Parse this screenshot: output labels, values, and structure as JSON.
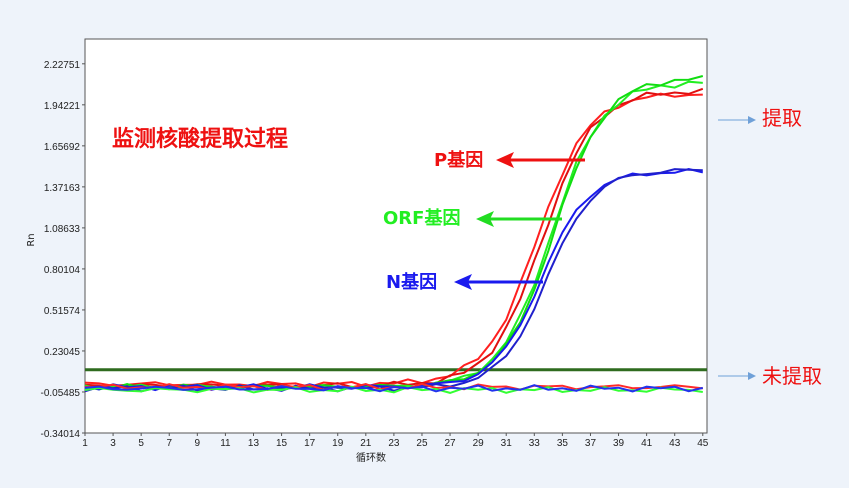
{
  "chart_data": {
    "type": "line",
    "title": "监测核酸提取过程",
    "xlabel": "循环数",
    "ylabel": "Rn",
    "xlim": [
      1,
      45
    ],
    "ylim": [
      -0.34014,
      2.4
    ],
    "x_ticks": [
      "1",
      "3",
      "5",
      "7",
      "9",
      "11",
      "13",
      "15",
      "17",
      "19",
      "21",
      "23",
      "25",
      "27",
      "29",
      "31",
      "33",
      "35",
      "37",
      "39",
      "41",
      "43",
      "45"
    ],
    "y_ticks": [
      "-0.34014",
      "-0.05485",
      "0.23045",
      "0.51574",
      "0.80104",
      "1.08633",
      "1.37163",
      "1.65692",
      "1.94221",
      "2.22751"
    ],
    "threshold": 0.1,
    "threshold_color": "#2f6b1f",
    "series": [
      {
        "color": "#ff1f1f",
        "curve": {
          "base": 0.0,
          "plateau": 2.02,
          "mid": 33.2,
          "k": 0.55
        }
      },
      {
        "color": "#e01010",
        "curve": {
          "base": -0.01,
          "plateau": 2.05,
          "mid": 33.6,
          "k": 0.55
        }
      },
      {
        "color": "#22ee22",
        "curve": {
          "base": -0.02,
          "plateau": 2.12,
          "mid": 34.2,
          "k": 0.55
        }
      },
      {
        "color": "#11dd11",
        "curve": {
          "base": -0.02,
          "plateau": 2.15,
          "mid": 34.4,
          "k": 0.55
        }
      },
      {
        "color": "#1a1aee",
        "curve": {
          "base": -0.02,
          "plateau": 1.5,
          "mid": 33.5,
          "k": 0.6
        }
      },
      {
        "color": "#2020cc",
        "curve": {
          "base": -0.03,
          "plateau": 1.52,
          "mid": 33.9,
          "k": 0.6
        }
      },
      {
        "color": "#ff2a2a",
        "curve": {
          "base": -0.02,
          "plateau": 0.0,
          "mid": 40,
          "k": 0.3
        }
      },
      {
        "color": "#33ff33",
        "curve": {
          "base": -0.04,
          "plateau": 0.0,
          "mid": 40,
          "k": 0.3
        }
      },
      {
        "color": "#2233ee",
        "curve": {
          "base": -0.03,
          "plateau": 0.0,
          "mid": 40,
          "k": 0.3
        }
      }
    ],
    "annotations": [
      {
        "text": "P基因",
        "color": "#ee1111",
        "arrow_color": "#ee1111"
      },
      {
        "text": "ORF基因",
        "color": "#22ee22",
        "arrow_color": "#22dd22"
      },
      {
        "text": "N基因",
        "color": "#1a1aee",
        "arrow_color": "#1a1aee"
      }
    ],
    "side_labels": {
      "extracted": "提取",
      "not_extracted": "未提取"
    },
    "side_arrow_color": "#6fa0d8"
  }
}
